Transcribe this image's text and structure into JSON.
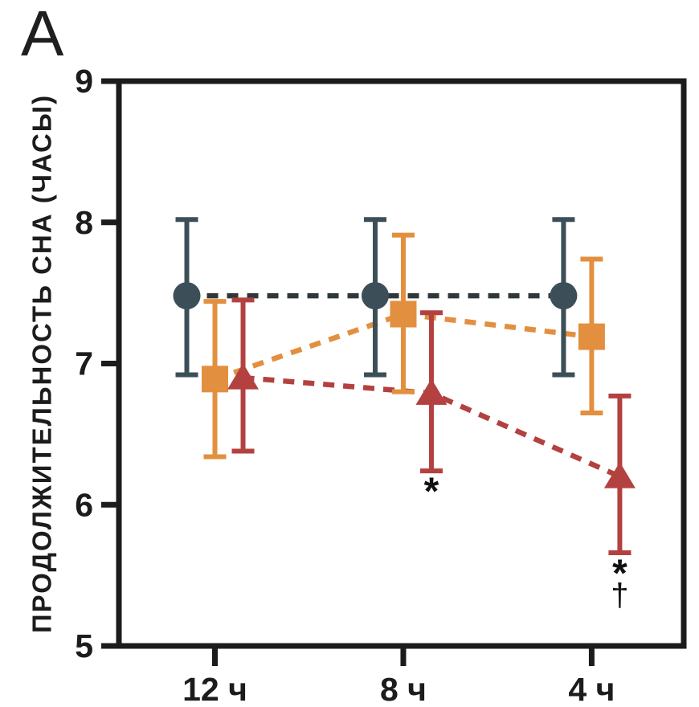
{
  "panel_label": "A",
  "chart_data": {
    "type": "line",
    "subtype": "point-estimates-with-error-bars",
    "title": "",
    "xlabel": "",
    "ylabel": "ПРОДОЛЖИТЕЛЬНОСТЬ СНА (ЧАСЫ)",
    "ylim": [
      5,
      9
    ],
    "yticks": [
      9,
      8,
      7,
      6,
      5
    ],
    "categories": [
      "12 ч",
      "8 ч",
      "4 ч"
    ],
    "grid": false,
    "legend": false,
    "axis_color": "#1c1c1c",
    "line_style": "dashed",
    "series": [
      {
        "name": "dark-circle-group",
        "marker": "circle",
        "color": "#3c4f58",
        "line_color": "#30373b",
        "values": [
          7.48,
          7.48,
          7.48
        ],
        "err_low": [
          6.92,
          6.92,
          6.92
        ],
        "err_high": [
          8.02,
          8.02,
          8.02
        ]
      },
      {
        "name": "orange-square-group",
        "marker": "square",
        "color": "#e2903f",
        "line_color": "#e2903f",
        "values": [
          6.89,
          7.35,
          7.19
        ],
        "err_low": [
          6.34,
          6.8,
          6.65
        ],
        "err_high": [
          7.44,
          7.91,
          7.74
        ]
      },
      {
        "name": "red-triangle-group",
        "marker": "triangle",
        "color": "#b34140",
        "line_color": "#b34140",
        "values": [
          6.9,
          6.79,
          6.2
        ],
        "err_low": [
          6.38,
          6.24,
          5.66
        ],
        "err_high": [
          7.45,
          7.36,
          6.77
        ]
      }
    ],
    "annotations": [
      {
        "lines": [
          "*"
        ],
        "category_index": 1,
        "series_index": 2,
        "position": "below-error-bar"
      },
      {
        "lines": [
          "*",
          "†"
        ],
        "category_index": 2,
        "series_index": 2,
        "position": "below-error-bar"
      }
    ]
  }
}
